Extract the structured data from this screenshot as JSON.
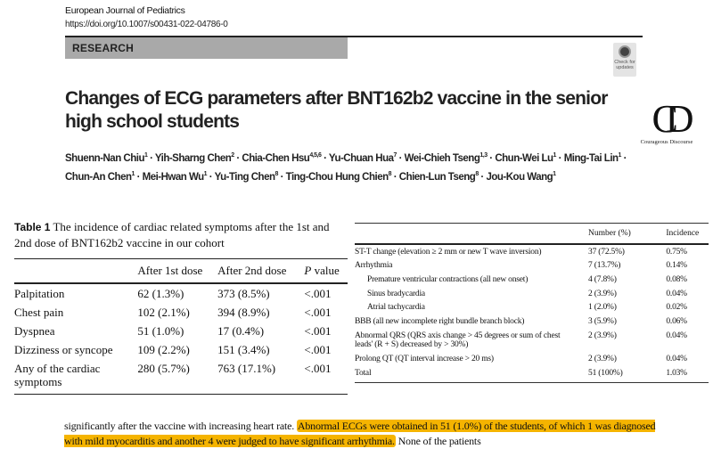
{
  "header": {
    "journal": "European Journal of Pediatrics",
    "doi": "https://doi.org/10.1007/s00431-022-04786-0",
    "section": "RESEARCH",
    "badge": "Check for updates"
  },
  "logo": {
    "text": "Courageous Discourse"
  },
  "title": "Changes of ECG parameters after BNT162b2 vaccine in the senior high school students",
  "authors": [
    {
      "name": "Shuenn-Nan Chiu",
      "aff": "1"
    },
    {
      "name": "Yih-Sharng Chen",
      "aff": "2"
    },
    {
      "name": "Chia-Chen Hsu",
      "aff": "4,5,6"
    },
    {
      "name": "Yu-Chuan Hua",
      "aff": "7"
    },
    {
      "name": "Wei-Chieh Tseng",
      "aff": "1,3"
    },
    {
      "name": "Chun-Wei Lu",
      "aff": "1"
    },
    {
      "name": "Ming-Tai Lin",
      "aff": "1"
    },
    {
      "name": "Chun-An Chen",
      "aff": "1"
    },
    {
      "name": "Mei-Hwan Wu",
      "aff": "1"
    },
    {
      "name": "Yu-Ting Chen",
      "aff": "8"
    },
    {
      "name": "Ting-Chou Hung Chien",
      "aff": "8"
    },
    {
      "name": "Chien-Lun Tseng",
      "aff": "8"
    },
    {
      "name": "Jou-Kou Wang",
      "aff": "1"
    }
  ],
  "table1": {
    "label": "Table 1",
    "caption": "The incidence of cardiac related symptoms after the 1st and 2nd dose of BNT162b2 vaccine in our cohort",
    "headers": [
      "",
      "After 1st dose",
      "After 2nd dose",
      "P value"
    ],
    "rows": [
      [
        "Palpitation",
        "62 (1.3%)",
        "373 (8.5%)",
        "<.001"
      ],
      [
        "Chest pain",
        "102 (2.1%)",
        "394 (8.9%)",
        "<.001"
      ],
      [
        "Dyspnea",
        "51 (1.0%)",
        "17 (0.4%)",
        "<.001"
      ],
      [
        "Dizziness or syncope",
        "109 (2.2%)",
        "151 (3.4%)",
        "<.001"
      ],
      [
        "Any of the cardiac symptoms",
        "280 (5.7%)",
        "763 (17.1%)",
        "<.001"
      ]
    ]
  },
  "table2": {
    "headers": [
      "",
      "Number (%)",
      "Incidence"
    ],
    "rows": [
      [
        "ST-T change (elevation ≥ 2 mm or new T wave inversion)",
        "37 (72.5%)",
        "0.75%",
        false
      ],
      [
        "Arrhythmia",
        "7 (13.7%)",
        "0.14%",
        false
      ],
      [
        "Premature ventricular contractions (all new onset)",
        "4 (7.8%)",
        "0.08%",
        true
      ],
      [
        "Sinus bradycardia",
        "2 (3.9%)",
        "0.04%",
        true
      ],
      [
        "Atrial tachycardia",
        "1 (2.0%)",
        "0.02%",
        true
      ],
      [
        "BBB (all new incomplete right bundle branch block)",
        "3 (5.9%)",
        "0.06%",
        false
      ],
      [
        "Abnormal QRS (QRS axis change > 45 degrees or sum of chest leads' (R + S) decreased by > 30%)",
        "2 (3.9%)",
        "0.04%",
        false
      ],
      [
        "Prolong QT (QT interval increase > 20 ms)",
        "2 (3.9%)",
        "0.04%",
        false
      ],
      [
        "Total",
        "51 (100%)",
        "1.03%",
        false
      ]
    ]
  },
  "body": {
    "pre": "significantly after the vaccine with increasing heart rate. ",
    "highlight": "Abnormal ECGs were obtained in 51 (1.0%) of the students, of which 1 was diagnosed with mild myocarditis and another 4 were judged to have significant arrhythmia.",
    "post": " None of the patients"
  },
  "colors": {
    "highlight": "#f5b400",
    "section_bar": "#a9a9a9"
  }
}
